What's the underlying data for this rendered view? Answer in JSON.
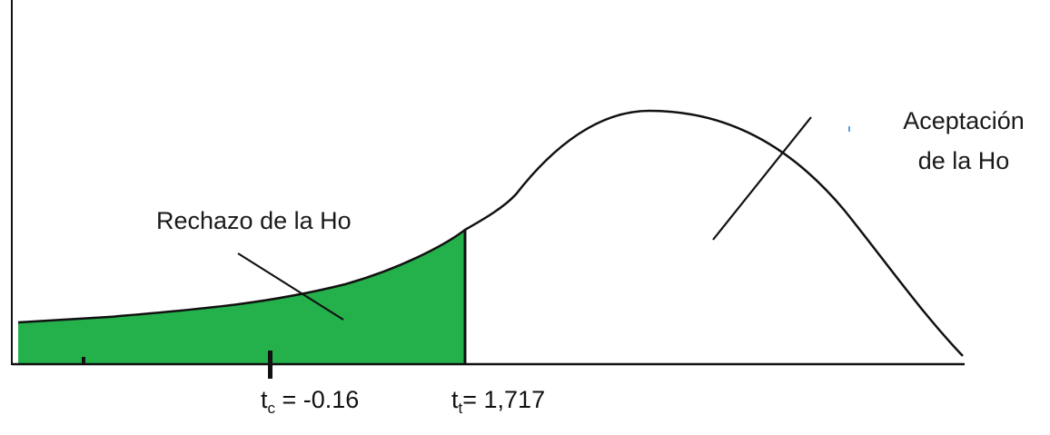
{
  "colors": {
    "rejection_fill": "#24b04b",
    "curve": "#111111",
    "axis": "#111111"
  },
  "labels": {
    "rejection": "Rechazo de la Ho",
    "acceptance_line1": "Aceptación",
    "acceptance_line2": "de la Ho"
  },
  "markers": {
    "tc": {
      "symbol": "t",
      "subscript": "c",
      "value": " = -0.16"
    },
    "tt": {
      "symbol": "t",
      "subscript": "t",
      "value": "= 1,717"
    }
  }
}
